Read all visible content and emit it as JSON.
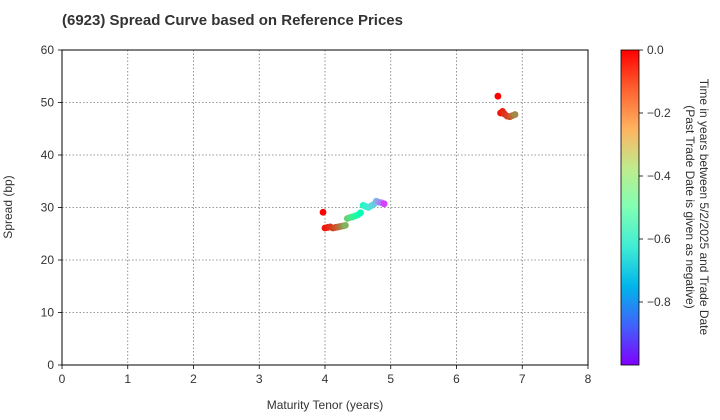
{
  "chart_data": {
    "type": "scatter",
    "title": "(6923)   Spread Curve based on Reference Prices",
    "xlabel": "Maturity Tenor (years)",
    "ylabel": "Spread (bp)",
    "xlim": [
      0,
      8
    ],
    "ylim": [
      0,
      60
    ],
    "xticks": [
      "0",
      "1",
      "2",
      "3",
      "4",
      "5",
      "6",
      "7",
      "8"
    ],
    "yticks": [
      "0",
      "10",
      "20",
      "30",
      "40",
      "50",
      "60"
    ],
    "grid": true,
    "colorbar": {
      "label_line1": "Time in years between 5/2/2025 and Trade Date",
      "label_line2": "(Past Trade Date is given as negative)",
      "range": [
        -1.0,
        0.0
      ],
      "ticks": [
        "0.0",
        "−0.2",
        "−0.4",
        "−0.6",
        "−0.8"
      ],
      "colormap": "rainbow"
    },
    "points": [
      {
        "x": 3.97,
        "y": 29.1,
        "c": 0.0
      },
      {
        "x": 4.0,
        "y": 26.1,
        "c": -0.02
      },
      {
        "x": 4.04,
        "y": 26.2,
        "c": -0.04
      },
      {
        "x": 4.08,
        "y": 26.3,
        "c": -0.06
      },
      {
        "x": 4.12,
        "y": 26.1,
        "c": -0.08
      },
      {
        "x": 4.16,
        "y": 26.2,
        "c": -0.1
      },
      {
        "x": 4.2,
        "y": 26.3,
        "c": -0.13
      },
      {
        "x": 4.24,
        "y": 26.4,
        "c": -0.16
      },
      {
        "x": 4.28,
        "y": 26.5,
        "c": -0.2
      },
      {
        "x": 4.31,
        "y": 26.6,
        "c": -0.25
      },
      {
        "x": 4.34,
        "y": 27.9,
        "c": -0.3
      },
      {
        "x": 4.38,
        "y": 28.1,
        "c": -0.34
      },
      {
        "x": 4.42,
        "y": 28.2,
        "c": -0.38
      },
      {
        "x": 4.46,
        "y": 28.4,
        "c": -0.42
      },
      {
        "x": 4.5,
        "y": 28.6,
        "c": -0.46
      },
      {
        "x": 4.54,
        "y": 29.0,
        "c": -0.5
      },
      {
        "x": 4.58,
        "y": 30.4,
        "c": -0.55
      },
      {
        "x": 4.62,
        "y": 30.2,
        "c": -0.6
      },
      {
        "x": 4.66,
        "y": 30.0,
        "c": -0.63
      },
      {
        "x": 4.7,
        "y": 30.3,
        "c": -0.66
      },
      {
        "x": 4.74,
        "y": 30.6,
        "c": -0.7
      },
      {
        "x": 4.78,
        "y": 31.2,
        "c": -0.75
      },
      {
        "x": 4.82,
        "y": 31.0,
        "c": -0.8
      },
      {
        "x": 4.86,
        "y": 30.9,
        "c": -0.85
      },
      {
        "x": 4.9,
        "y": 30.7,
        "c": -0.92
      },
      {
        "x": 6.63,
        "y": 51.2,
        "c": 0.0
      },
      {
        "x": 6.67,
        "y": 48.0,
        "c": -0.02
      },
      {
        "x": 6.7,
        "y": 48.3,
        "c": -0.04
      },
      {
        "x": 6.73,
        "y": 47.8,
        "c": -0.06
      },
      {
        "x": 6.77,
        "y": 47.4,
        "c": -0.08
      },
      {
        "x": 6.81,
        "y": 47.3,
        "c": -0.1
      },
      {
        "x": 6.85,
        "y": 47.5,
        "c": -0.14
      },
      {
        "x": 6.89,
        "y": 47.7,
        "c": -0.18
      }
    ]
  }
}
